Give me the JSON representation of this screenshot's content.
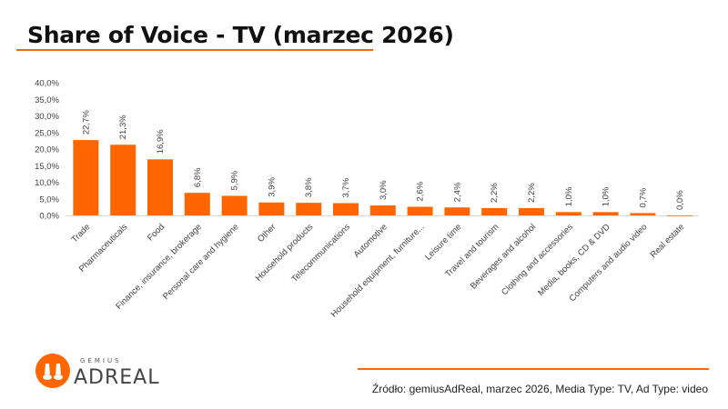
{
  "title": "Share of Voice - TV (marzec 2026)",
  "source": "Źródło: gemiusAdReal, marzec 2026, Media Type: TV, Ad Type: video",
  "logo": {
    "top": "GEMIUS",
    "main": "ADREAL"
  },
  "colors": {
    "accent": "#ff6600",
    "bar": "#ff6600",
    "text": "#404040"
  },
  "chart_data": {
    "type": "bar",
    "categories": [
      "Trade",
      "Pharmaceuticals",
      "Food",
      "Finance, insurance, brokerage",
      "Personal care and hygiene",
      "Other",
      "Household products",
      "Telecommunications",
      "Automotive",
      "Household equipment, furniture...",
      "Leisure time",
      "Travel and tourism",
      "Beverages and alcohol",
      "Clothing and accessories",
      "Media, books, CD & DVD",
      "Computers and audio video",
      "Real estate"
    ],
    "values": [
      22.7,
      21.3,
      16.9,
      6.8,
      5.9,
      3.9,
      3.8,
      3.7,
      3.0,
      2.6,
      2.4,
      2.2,
      2.2,
      1.0,
      1.0,
      0.7,
      0.0
    ],
    "data_labels": [
      "22,7%",
      "21,3%",
      "16,9%",
      "6,8%",
      "5,9%",
      "3,9%",
      "3,8%",
      "3,7%",
      "3,0%",
      "2,6%",
      "2,4%",
      "2,2%",
      "2,2%",
      "1,0%",
      "1,0%",
      "0,7%",
      "0,0%"
    ],
    "yticks": [
      "0,0%",
      "5,0%",
      "10,0%",
      "15,0%",
      "20,0%",
      "25,0%",
      "30,0%",
      "35,0%",
      "40,0%"
    ],
    "ylim": [
      0,
      40
    ],
    "grid": false,
    "legend": "none"
  }
}
